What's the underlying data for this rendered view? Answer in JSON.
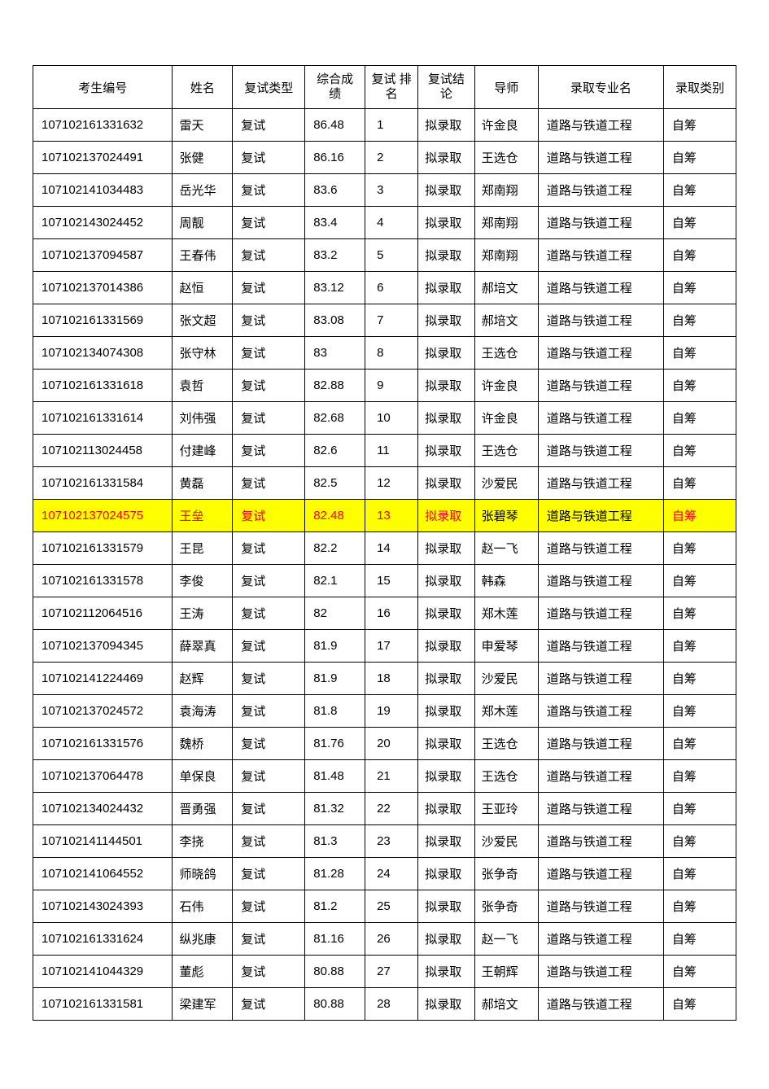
{
  "table": {
    "columns": [
      {
        "key": "id",
        "label": "考生编号",
        "class": "col-id"
      },
      {
        "key": "name",
        "label": "姓名",
        "class": "col-name"
      },
      {
        "key": "type",
        "label": "复试类型",
        "class": "col-type"
      },
      {
        "key": "score",
        "label": "综合成\n绩",
        "class": "col-score",
        "multiline": true
      },
      {
        "key": "rank",
        "label": "复试\n排名",
        "class": "col-rank",
        "multiline": true
      },
      {
        "key": "result",
        "label": "复试结\n论",
        "class": "col-result",
        "multiline": true
      },
      {
        "key": "advisor",
        "label": "导师",
        "class": "col-advisor"
      },
      {
        "key": "major",
        "label": "录取专业名",
        "class": "col-major"
      },
      {
        "key": "category",
        "label": "录取类别",
        "class": "col-category"
      }
    ],
    "rows": [
      {
        "id": "107102161331632",
        "name": "雷天",
        "type": "复试",
        "score": "86.48",
        "rank": "1",
        "result": "拟录取",
        "advisor": "许金良",
        "major": "道路与铁道工程",
        "category": "自筹",
        "highlighted": false
      },
      {
        "id": "107102137024491",
        "name": "张健",
        "type": "复试",
        "score": "86.16",
        "rank": "2",
        "result": "拟录取",
        "advisor": "王选仓",
        "major": "道路与铁道工程",
        "category": "自筹",
        "highlighted": false
      },
      {
        "id": "107102141034483",
        "name": "岳光华",
        "type": "复试",
        "score": "83.6",
        "rank": "3",
        "result": "拟录取",
        "advisor": "郑南翔",
        "major": "道路与铁道工程",
        "category": "自筹",
        "highlighted": false
      },
      {
        "id": "107102143024452",
        "name": "周靓",
        "type": "复试",
        "score": "83.4",
        "rank": "4",
        "result": "拟录取",
        "advisor": "郑南翔",
        "major": "道路与铁道工程",
        "category": "自筹",
        "highlighted": false
      },
      {
        "id": "107102137094587",
        "name": "王春伟",
        "type": "复试",
        "score": "83.2",
        "rank": "5",
        "result": "拟录取",
        "advisor": "郑南翔",
        "major": "道路与铁道工程",
        "category": "自筹",
        "highlighted": false
      },
      {
        "id": "107102137014386",
        "name": "赵恒",
        "type": "复试",
        "score": "83.12",
        "rank": "6",
        "result": "拟录取",
        "advisor": "郝培文",
        "major": "道路与铁道工程",
        "category": "自筹",
        "highlighted": false
      },
      {
        "id": "107102161331569",
        "name": "张文超",
        "type": "复试",
        "score": "83.08",
        "rank": "7",
        "result": "拟录取",
        "advisor": "郝培文",
        "major": "道路与铁道工程",
        "category": "自筹",
        "highlighted": false
      },
      {
        "id": "107102134074308",
        "name": "张守林",
        "type": "复试",
        "score": "83",
        "rank": "8",
        "result": "拟录取",
        "advisor": "王选仓",
        "major": "道路与铁道工程",
        "category": "自筹",
        "highlighted": false
      },
      {
        "id": "107102161331618",
        "name": "袁哲",
        "type": "复试",
        "score": "82.88",
        "rank": "9",
        "result": "拟录取",
        "advisor": "许金良",
        "major": "道路与铁道工程",
        "category": "自筹",
        "highlighted": false
      },
      {
        "id": "107102161331614",
        "name": "刘伟强",
        "type": "复试",
        "score": "82.68",
        "rank": "10",
        "result": "拟录取",
        "advisor": "许金良",
        "major": "道路与铁道工程",
        "category": "自筹",
        "highlighted": false
      },
      {
        "id": "107102113024458",
        "name": "付建峰",
        "type": "复试",
        "score": "82.6",
        "rank": "11",
        "result": "拟录取",
        "advisor": "王选仓",
        "major": "道路与铁道工程",
        "category": "自筹",
        "highlighted": false
      },
      {
        "id": "107102161331584",
        "name": "黄磊",
        "type": "复试",
        "score": "82.5",
        "rank": "12",
        "result": "拟录取",
        "advisor": "沙爱民",
        "major": "道路与铁道工程",
        "category": "自筹",
        "highlighted": false
      },
      {
        "id": "107102137024575",
        "name": "王垒",
        "type": "复试",
        "score": "82.48",
        "rank": "13",
        "result": "拟录取",
        "advisor": "张碧琴",
        "major": "道路与铁道工程",
        "category": "自筹",
        "highlighted": true
      },
      {
        "id": "107102161331579",
        "name": "王昆",
        "type": "复试",
        "score": "82.2",
        "rank": "14",
        "result": "拟录取",
        "advisor": "赵一飞",
        "major": "道路与铁道工程",
        "category": "自筹",
        "highlighted": false
      },
      {
        "id": "107102161331578",
        "name": "李俊",
        "type": "复试",
        "score": "82.1",
        "rank": "15",
        "result": "拟录取",
        "advisor": "韩森",
        "major": "道路与铁道工程",
        "category": "自筹",
        "highlighted": false
      },
      {
        "id": "107102112064516",
        "name": "王涛",
        "type": "复试",
        "score": "82",
        "rank": "16",
        "result": "拟录取",
        "advisor": "郑木莲",
        "major": "道路与铁道工程",
        "category": "自筹",
        "highlighted": false
      },
      {
        "id": "107102137094345",
        "name": "薛翠真",
        "type": "复试",
        "score": "81.9",
        "rank": "17",
        "result": "拟录取",
        "advisor": "申爱琴",
        "major": "道路与铁道工程",
        "category": "自筹",
        "highlighted": false
      },
      {
        "id": "107102141224469",
        "name": "赵辉",
        "type": "复试",
        "score": "81.9",
        "rank": "18",
        "result": "拟录取",
        "advisor": "沙爱民",
        "major": "道路与铁道工程",
        "category": "自筹",
        "highlighted": false
      },
      {
        "id": "107102137024572",
        "name": "袁海涛",
        "type": "复试",
        "score": "81.8",
        "rank": "19",
        "result": "拟录取",
        "advisor": "郑木莲",
        "major": "道路与铁道工程",
        "category": "自筹",
        "highlighted": false
      },
      {
        "id": "107102161331576",
        "name": "魏桥",
        "type": "复试",
        "score": "81.76",
        "rank": "20",
        "result": "拟录取",
        "advisor": "王选仓",
        "major": "道路与铁道工程",
        "category": "自筹",
        "highlighted": false
      },
      {
        "id": "107102137064478",
        "name": "单保良",
        "type": "复试",
        "score": "81.48",
        "rank": "21",
        "result": "拟录取",
        "advisor": "王选仓",
        "major": "道路与铁道工程",
        "category": "自筹",
        "highlighted": false
      },
      {
        "id": "107102134024432",
        "name": "晋勇强",
        "type": "复试",
        "score": "81.32",
        "rank": "22",
        "result": "拟录取",
        "advisor": "王亚玲",
        "major": "道路与铁道工程",
        "category": "自筹",
        "highlighted": false
      },
      {
        "id": "107102141144501",
        "name": "李挠",
        "type": "复试",
        "score": "81.3",
        "rank": "23",
        "result": "拟录取",
        "advisor": "沙爱民",
        "major": "道路与铁道工程",
        "category": "自筹",
        "highlighted": false
      },
      {
        "id": "107102141064552",
        "name": "师晓鸽",
        "type": "复试",
        "score": "81.28",
        "rank": "24",
        "result": "拟录取",
        "advisor": "张争奇",
        "major": "道路与铁道工程",
        "category": "自筹",
        "highlighted": false
      },
      {
        "id": "107102143024393",
        "name": "石伟",
        "type": "复试",
        "score": "81.2",
        "rank": "25",
        "result": "拟录取",
        "advisor": "张争奇",
        "major": "道路与铁道工程",
        "category": "自筹",
        "highlighted": false
      },
      {
        "id": "107102161331624",
        "name": "纵兆康",
        "type": "复试",
        "score": "81.16",
        "rank": "26",
        "result": "拟录取",
        "advisor": "赵一飞",
        "major": "道路与铁道工程",
        "category": "自筹",
        "highlighted": false
      },
      {
        "id": "107102141044329",
        "name": "董彪",
        "type": "复试",
        "score": "80.88",
        "rank": "27",
        "result": "拟录取",
        "advisor": "王朝辉",
        "major": "道路与铁道工程",
        "category": "自筹",
        "highlighted": false
      },
      {
        "id": "107102161331581",
        "name": "梁建军",
        "type": "复试",
        "score": "80.88",
        "rank": "28",
        "result": "拟录取",
        "advisor": "郝培文",
        "major": "道路与铁道工程",
        "category": "自筹",
        "highlighted": false
      }
    ],
    "highlight_color": "#ffff00",
    "highlight_text_color": "#ff0000",
    "border_color": "#000000",
    "background_color": "#ffffff"
  }
}
